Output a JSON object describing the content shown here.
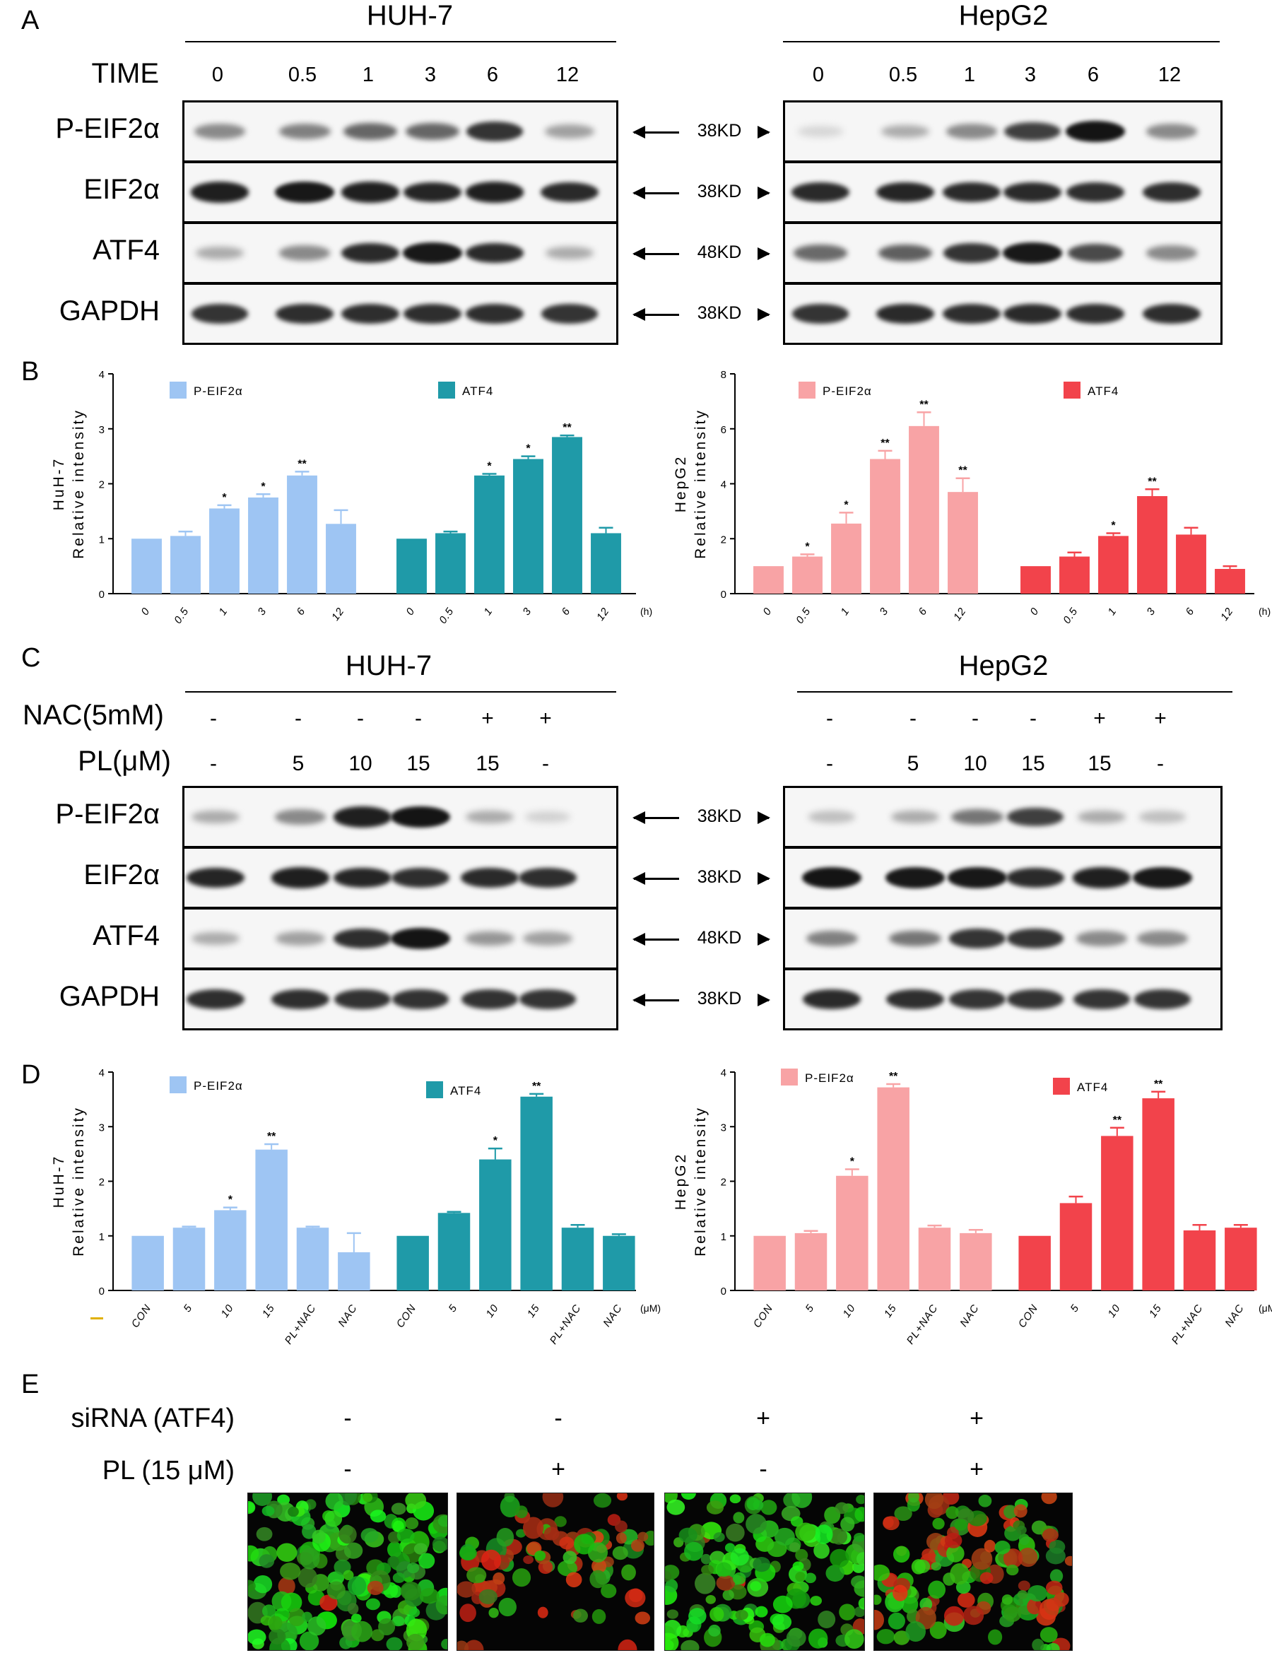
{
  "panels": {
    "A": {
      "letter": "A",
      "huh_title": "HUH-7",
      "hep_title": "HepG2",
      "time_label": "TIME",
      "lanes": [
        "0",
        "0.5",
        "1",
        "3",
        "6",
        "12"
      ],
      "rows": [
        {
          "name": "P-EIF2α",
          "mw": "38KD"
        },
        {
          "name": "EIF2α",
          "mw": "38KD"
        },
        {
          "name": "ATF4",
          "mw": "48KD"
        },
        {
          "name": "GAPDH",
          "mw": "38KD"
        }
      ],
      "band_intensity_huh": [
        [
          0.45,
          0.5,
          0.62,
          0.62,
          0.85,
          0.35
        ],
        [
          0.95,
          0.98,
          0.95,
          0.92,
          0.95,
          0.9
        ],
        [
          0.3,
          0.45,
          0.9,
          0.98,
          0.9,
          0.3
        ],
        [
          0.85,
          0.88,
          0.88,
          0.88,
          0.88,
          0.85
        ]
      ],
      "band_intensity_hep": [
        [
          0.1,
          0.3,
          0.45,
          0.8,
          1.0,
          0.45
        ],
        [
          0.9,
          0.92,
          0.9,
          0.9,
          0.88,
          0.88
        ],
        [
          0.6,
          0.65,
          0.85,
          0.98,
          0.75,
          0.45
        ],
        [
          0.85,
          0.9,
          0.88,
          0.9,
          0.88,
          0.88
        ]
      ]
    },
    "B": {
      "letter": "B"
    },
    "C": {
      "letter": "C",
      "huh_title": "HUH-7",
      "hep_title": "HepG2",
      "nac_label": "NAC(5mM)",
      "pl_label": "PL(μM)",
      "nac_values": [
        "-",
        "-",
        "-",
        "-",
        "+",
        "+"
      ],
      "pl_values": [
        "-",
        "5",
        "10",
        "15",
        "15",
        "-"
      ],
      "rows": [
        {
          "name": "P-EIF2α",
          "mw": "38KD"
        },
        {
          "name": "EIF2α",
          "mw": "38KD"
        },
        {
          "name": "ATF4",
          "mw": "48KD"
        },
        {
          "name": "GAPDH",
          "mw": "38KD"
        }
      ],
      "band_intensity_huh": [
        [
          0.3,
          0.45,
          0.95,
          1.0,
          0.3,
          0.12
        ],
        [
          0.92,
          0.95,
          0.92,
          0.88,
          0.9,
          0.88
        ],
        [
          0.3,
          0.35,
          0.88,
          1.0,
          0.4,
          0.35
        ],
        [
          0.88,
          0.88,
          0.86,
          0.86,
          0.86,
          0.85
        ]
      ],
      "band_intensity_hep": [
        [
          0.2,
          0.3,
          0.55,
          0.8,
          0.3,
          0.2
        ],
        [
          1.0,
          0.98,
          0.98,
          0.9,
          0.95,
          0.98
        ],
        [
          0.5,
          0.55,
          0.85,
          0.85,
          0.45,
          0.45
        ],
        [
          0.9,
          0.88,
          0.85,
          0.85,
          0.85,
          0.85
        ]
      ]
    },
    "D": {
      "letter": "D"
    },
    "E": {
      "letter": "E",
      "sirna_label": "siRNA (ATF4)",
      "pl_label": "PL (15 μM)",
      "sirna_values": [
        "-",
        "-",
        "+",
        "+"
      ],
      "pl_values": [
        "-",
        "+",
        "-",
        "+"
      ]
    }
  },
  "chart_data": [
    {
      "type": "bar",
      "id": "B-huh",
      "ylabel": "Relative intensity",
      "cell": "HuH-7",
      "ylim": [
        0,
        4
      ],
      "yticks": [
        "0",
        "1",
        "2",
        "3",
        "4"
      ],
      "unit": "(h)",
      "categories": [
        "0",
        "0.5",
        "1",
        "3",
        "6",
        "12"
      ],
      "series": [
        {
          "name": "P-EIF2α",
          "color": "#9ec5f3",
          "values": [
            1.0,
            1.05,
            1.55,
            1.75,
            2.15,
            1.27
          ],
          "err": [
            0,
            0.08,
            0.06,
            0.06,
            0.07,
            0.25
          ],
          "sig": [
            "",
            "",
            "*",
            "*",
            "**",
            ""
          ]
        },
        {
          "name": "ATF4",
          "color": "#1f9aa8",
          "values": [
            1.0,
            1.1,
            2.15,
            2.45,
            2.85,
            1.1
          ],
          "err": [
            0,
            0.03,
            0.03,
            0.05,
            0.03,
            0.1
          ],
          "sig": [
            "",
            "",
            "*",
            "*",
            "**",
            ""
          ]
        }
      ]
    },
    {
      "type": "bar",
      "id": "B-hep",
      "ylabel": "Relative intensity",
      "cell": "HepG2",
      "ylim": [
        0,
        8
      ],
      "yticks": [
        "0",
        "2",
        "4",
        "6",
        "8"
      ],
      "unit": "(h)",
      "categories": [
        "0",
        "0.5",
        "1",
        "3",
        "6",
        "12"
      ],
      "series": [
        {
          "name": "P-EIF2α",
          "color": "#f8a3a5",
          "values": [
            1.0,
            1.35,
            2.55,
            4.9,
            6.1,
            3.7
          ],
          "err": [
            0,
            0.08,
            0.4,
            0.3,
            0.5,
            0.5
          ],
          "sig": [
            "",
            "*",
            "*",
            "**",
            "**",
            "**"
          ]
        },
        {
          "name": "ATF4",
          "color": "#f2434b",
          "values": [
            1.0,
            1.35,
            2.1,
            3.55,
            2.15,
            0.9
          ],
          "err": [
            0,
            0.15,
            0.1,
            0.25,
            0.25,
            0.1
          ],
          "sig": [
            "",
            "",
            "*",
            "**",
            "",
            ""
          ]
        }
      ]
    },
    {
      "type": "bar",
      "id": "D-huh",
      "ylabel": "Relative intensity",
      "cell": "HuH-7",
      "ylim": [
        0,
        4
      ],
      "yticks": [
        "0",
        "1",
        "2",
        "3",
        "4"
      ],
      "unit": "(μM)",
      "categories": [
        "CON",
        "5",
        "10",
        "15",
        "PL+NAC",
        "NAC"
      ],
      "series": [
        {
          "name": "P-EIF2α",
          "color": "#9ec5f3",
          "values": [
            1.0,
            1.15,
            1.47,
            2.58,
            1.15,
            0.7
          ],
          "err": [
            0,
            0.02,
            0.05,
            0.1,
            0.02,
            0.35
          ],
          "sig": [
            "",
            "",
            "*",
            "**",
            "",
            ""
          ]
        },
        {
          "name": "ATF4",
          "color": "#1f9aa8",
          "values": [
            1.0,
            1.42,
            2.4,
            3.55,
            1.15,
            1.0
          ],
          "err": [
            0,
            0.02,
            0.2,
            0.05,
            0.05,
            0.03
          ],
          "sig": [
            "",
            "",
            "*",
            "**",
            "",
            ""
          ]
        }
      ]
    },
    {
      "type": "bar",
      "id": "D-hep",
      "ylabel": "Relative intensity",
      "cell": "HepG2",
      "ylim": [
        0,
        4
      ],
      "yticks": [
        "0",
        "1",
        "2",
        "3",
        "4"
      ],
      "unit": "(μM)",
      "categories": [
        "CON",
        "5",
        "10",
        "15",
        "PL+NAC",
        "NAC"
      ],
      "series": [
        {
          "name": "P-EIF2α",
          "color": "#f8a3a5",
          "values": [
            1.0,
            1.05,
            2.1,
            3.72,
            1.15,
            1.05
          ],
          "err": [
            0,
            0.04,
            0.12,
            0.06,
            0.04,
            0.06
          ],
          "sig": [
            "",
            "",
            "*",
            "**",
            "",
            ""
          ]
        },
        {
          "name": "ATF4",
          "color": "#f2434b",
          "values": [
            1.0,
            1.6,
            2.83,
            3.52,
            1.1,
            1.15
          ],
          "err": [
            0,
            0.12,
            0.15,
            0.12,
            0.1,
            0.05
          ],
          "sig": [
            "",
            "",
            "**",
            "**",
            "",
            ""
          ]
        }
      ]
    }
  ]
}
